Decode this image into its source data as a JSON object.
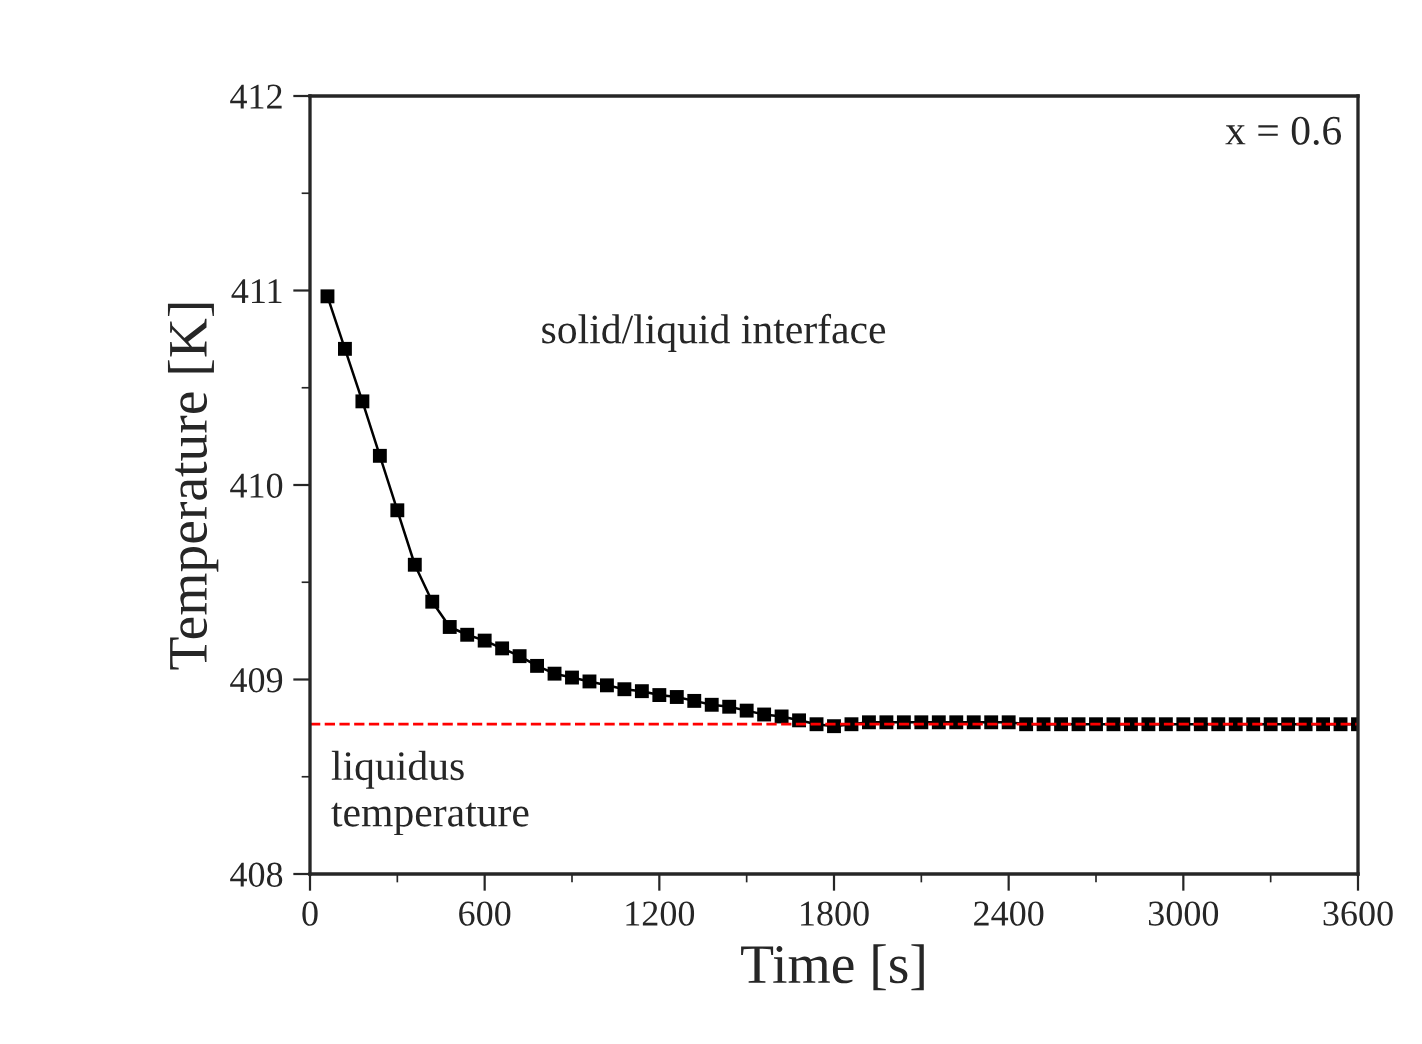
{
  "chart_data": {
    "type": "line",
    "xlabel": "Time [s]",
    "ylabel": "Temperature [K]",
    "x": [
      60,
      120,
      180,
      240,
      300,
      360,
      420,
      480,
      540,
      600,
      660,
      720,
      780,
      840,
      900,
      960,
      1020,
      1080,
      1140,
      1200,
      1260,
      1320,
      1380,
      1440,
      1500,
      1560,
      1620,
      1680,
      1740,
      1800,
      1860,
      1920,
      1980,
      2040,
      2100,
      2160,
      2220,
      2280,
      2340,
      2400,
      2460,
      2520,
      2580,
      2640,
      2700,
      2760,
      2820,
      2880,
      2940,
      3000,
      3060,
      3120,
      3180,
      3240,
      3300,
      3360,
      3420,
      3480,
      3540,
      3600
    ],
    "series": [
      {
        "color": "#000000",
        "values": [
          410.97,
          410.7,
          410.43,
          410.15,
          409.87,
          409.59,
          409.4,
          409.27,
          409.23,
          409.2,
          409.16,
          409.12,
          409.07,
          409.03,
          409.01,
          408.99,
          408.97,
          408.95,
          408.94,
          408.92,
          408.91,
          408.89,
          408.87,
          408.86,
          408.84,
          408.82,
          408.81,
          408.79,
          408.77,
          408.76,
          408.77,
          408.78,
          408.78,
          408.78,
          408.78,
          408.78,
          408.78,
          408.78,
          408.78,
          408.78,
          408.77,
          408.77,
          408.77,
          408.77,
          408.77,
          408.77,
          408.77,
          408.77,
          408.77,
          408.77,
          408.77,
          408.77,
          408.77,
          408.77,
          408.77,
          408.77,
          408.77,
          408.77,
          408.77,
          408.77
        ]
      }
    ],
    "marker": "square",
    "line_style": "solid",
    "xlim": [
      0,
      3600
    ],
    "xticks": [
      0,
      600,
      1200,
      1800,
      2400,
      3000,
      3600
    ],
    "ylim": [
      408,
      412
    ],
    "yticks": [
      408,
      409,
      410,
      411,
      412
    ],
    "ref_lines": [
      {
        "axis": "y",
        "value": 408.77,
        "label": "liquidus\ntemperature",
        "color": "#ff0000",
        "line_style": "dashed"
      }
    ],
    "annotations": [
      "solid/liquid interface",
      "x = 0.6"
    ],
    "grid": false,
    "legend": false
  }
}
